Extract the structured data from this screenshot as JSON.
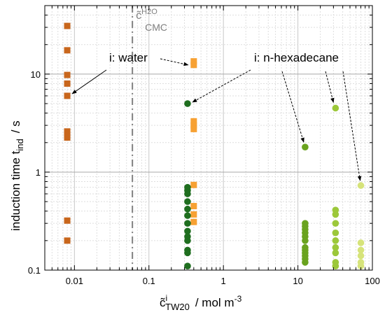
{
  "chart_data": {
    "type": "scatter",
    "title": "",
    "xlabel": {
      "main": "c̃",
      "sup": "i",
      "sub": "TW20",
      "unit": "/  mol m",
      "unit_sup": "-3"
    },
    "ylabel": {
      "main": "induction time t",
      "sub": "ind",
      "unit": "/  s"
    },
    "x_scale": "log",
    "y_scale": "log",
    "xlim": [
      0.004,
      100
    ],
    "ylim": [
      0.1,
      50
    ],
    "x_tick_labels": [
      {
        "value": 0.01,
        "label": "0.01"
      },
      {
        "value": 0.1,
        "label": "0.1"
      },
      {
        "value": 1,
        "label": "1"
      },
      {
        "value": 10,
        "label": "10"
      },
      {
        "value": 100,
        "label": "100"
      }
    ],
    "y_tick_labels": [
      {
        "value": 0.1,
        "label": "0.1"
      },
      {
        "value": 1,
        "label": "1"
      },
      {
        "value": 10,
        "label": "10"
      }
    ],
    "grid": true,
    "cmc": {
      "x": 0.06,
      "label_main": "c̃",
      "label_sup": "H2O",
      "label_sub": "CMC",
      "color": "#808080"
    },
    "series": [
      {
        "marker": "square",
        "color": "#c8661c",
        "x": 0.008,
        "y": [
          31,
          17.5,
          9.8,
          8.0,
          6.0,
          2.6,
          2.4,
          2.25,
          0.32,
          0.2
        ]
      },
      {
        "marker": "square",
        "color": "#f7a133",
        "x": 0.4,
        "y": [
          13.5,
          12.4,
          3.3,
          3.0,
          2.75,
          0.74,
          0.45,
          0.37,
          0.31
        ]
      },
      {
        "marker": "circle",
        "color": "#1f6e1f",
        "x": 0.33,
        "y": [
          5.0,
          0.7,
          0.65,
          0.6,
          0.5,
          0.42,
          0.36,
          0.3,
          0.25,
          0.22,
          0.2,
          0.16,
          0.15,
          0.11
        ]
      },
      {
        "marker": "circle",
        "color": "#6aa31f",
        "x": 12.5,
        "y": [
          1.8,
          0.3,
          0.28,
          0.26,
          0.24,
          0.22,
          0.2,
          0.17,
          0.16,
          0.15,
          0.14,
          0.13,
          0.12
        ]
      },
      {
        "marker": "circle",
        "color": "#9cc83a",
        "x": 32,
        "y": [
          4.5,
          0.41,
          0.37,
          0.3,
          0.24,
          0.2,
          0.17,
          0.15,
          0.12,
          0.11
        ]
      },
      {
        "marker": "circle",
        "color": "#d6e37a",
        "x": 70,
        "y": [
          0.73,
          0.19,
          0.16,
          0.14,
          0.12,
          0.11
        ]
      }
    ],
    "annotations": [
      {
        "text": "i: water"
      },
      {
        "text": "i: n-hexadecane"
      }
    ]
  }
}
